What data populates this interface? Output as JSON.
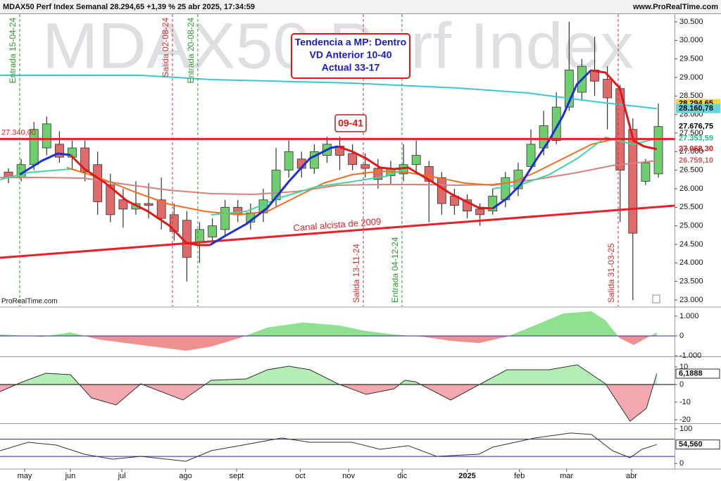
{
  "chart_data": [
    {
      "type": "candlestick",
      "title": "MDAX50 Perf Index Semanal 28.294,65 +1,39 % 25 abr 2025, 17:34:59",
      "source": "www.ProRealTime.com",
      "credit": "ProRealTime.com",
      "watermark": "MDAX50 Perf Index",
      "signal_box": [
        "Tendencia a MP: Dentro",
        "VD Anterior 10-40",
        "Actual 33-17"
      ],
      "signal_label": "09-41",
      "up_color": "#6fcf6f",
      "down_color": "#e06a6a",
      "xlim": [
        -0.663,
        52.27
      ],
      "ylim": [
        22828,
        30709
      ],
      "yticks": [
        {
          "value": 30500,
          "label": "30.500"
        },
        {
          "value": 30000,
          "label": "30.000"
        },
        {
          "value": 29500,
          "label": "29.500"
        },
        {
          "value": 29000,
          "label": "29.000"
        },
        {
          "value": 28500,
          "label": "28.500"
        },
        {
          "value": 28000,
          "label": "28.000"
        },
        {
          "value": 27500,
          "label": "27.500"
        },
        {
          "value": 27000,
          "label": "27.000"
        },
        {
          "value": 26500,
          "label": "26.500"
        },
        {
          "value": 26000,
          "label": "26.000"
        },
        {
          "value": 25500,
          "label": "25.500"
        },
        {
          "value": 25000,
          "label": "25.000"
        },
        {
          "value": 24500,
          "label": "24.500"
        },
        {
          "value": 24000,
          "label": "24.000"
        },
        {
          "value": 23500,
          "label": "23.500"
        },
        {
          "value": 23000,
          "label": "23.000"
        }
      ],
      "open": [
        26450,
        26300,
        26650,
        27100,
        27200,
        26850,
        27100,
        26650,
        26100,
        25700,
        25450,
        25600,
        25700,
        25300,
        25150,
        24550,
        24700,
        24900,
        25500,
        25100,
        25350,
        25700,
        26500,
        26800,
        26550,
        26900,
        27150,
        26950,
        26650,
        26550,
        26350,
        26400,
        26650,
        26600,
        26300,
        25800,
        25700,
        25450,
        25400,
        25700,
        26000,
        26600,
        27100,
        27300,
        28200,
        28600,
        29200,
        28950,
        28700,
        27600,
        26200,
        26400
      ],
      "high": [
        26550,
        26800,
        27800,
        27950,
        27550,
        27300,
        27300,
        27000,
        26400,
        26000,
        26200,
        26150,
        26300,
        25600,
        25400,
        25100,
        25200,
        25700,
        25700,
        25600,
        26000,
        27100,
        27300,
        27000,
        27200,
        27400,
        27400,
        27200,
        26950,
        26800,
        26750,
        27200,
        27300,
        26750,
        26450,
        26000,
        25850,
        25600,
        26000,
        26450,
        26700,
        27600,
        28100,
        28600,
        30500,
        29500,
        30100,
        29300,
        28800,
        27900,
        26800,
        28300
      ],
      "low": [
        26150,
        26200,
        26500,
        26900,
        26700,
        26500,
        26200,
        25300,
        25100,
        24950,
        25300,
        25200,
        24900,
        24600,
        23500,
        24000,
        24500,
        24700,
        25100,
        24900,
        25100,
        25500,
        26300,
        26300,
        26400,
        26700,
        26500,
        26500,
        26300,
        26000,
        26100,
        26200,
        26400,
        25100,
        25300,
        25300,
        25200,
        25000,
        25300,
        25500,
        25800,
        26500,
        26900,
        27200,
        28100,
        28400,
        28500,
        27600,
        25100,
        23000,
        26100,
        26300
      ],
      "close": [
        26300,
        26650,
        27600,
        27750,
        26850,
        27100,
        26450,
        25650,
        25300,
        25450,
        25600,
        25550,
        25200,
        24850,
        24150,
        24900,
        25000,
        25500,
        25300,
        25350,
        25700,
        26500,
        27000,
        26550,
        27000,
        27200,
        26900,
        26650,
        26550,
        26250,
        26550,
        26650,
        26900,
        26200,
        25600,
        25550,
        25400,
        25300,
        25800,
        26300,
        26500,
        27200,
        27700,
        28200,
        29200,
        29300,
        28900,
        28450,
        26500,
        24800,
        26700,
        27676.75
      ],
      "lines": [
        {
          "color": "#3cc8d0",
          "width": 2,
          "x": [
            -0.66,
            10.39,
            15.91,
            26.96,
            35.25,
            40.77,
            46.3,
            50.88
          ],
          "values": [
            29057,
            29057,
            28943,
            28848,
            28715,
            28582,
            28335,
            28160.78
          ]
        },
        {
          "color": "#d98080",
          "width": 2,
          "x": [
            -0.66,
            2.65,
            5.97,
            9.28,
            12.6,
            15.91,
            19.23,
            22.54,
            25.86,
            29.17,
            32.49,
            35.25,
            38.01,
            41.33,
            44.64,
            47.4,
            50.88
          ],
          "values": [
            26303,
            26303,
            26284,
            26113,
            25962,
            25866,
            25848,
            25924,
            26094,
            26113,
            26113,
            26094,
            26113,
            26246,
            26436,
            26626,
            26759.1
          ]
        },
        {
          "color": "#f07020",
          "width": 2,
          "x": [
            4.59,
            7.07,
            9.83,
            12.6,
            15.36,
            18.12,
            20.33,
            22.54,
            24.75,
            26.96,
            29.17,
            31.38,
            33.59,
            35.8,
            38.01,
            39.67,
            41.33,
            43.54,
            45.75,
            47.4,
            49.06
          ],
          "values": [
            26569,
            26303,
            25924,
            25582,
            25392,
            25297,
            25392,
            25772,
            26151,
            26379,
            26474,
            26436,
            26303,
            26151,
            26094,
            26189,
            26436,
            26816,
            27196,
            27329,
            27196
          ]
        },
        {
          "color": "#3fd6a0",
          "width": 2,
          "x": [
            -0.66,
            1.55,
            4.86
          ],
          "values": [
            26246,
            26436,
            26531
          ]
        },
        {
          "color": "#3fd6a0",
          "width": 2,
          "x": [
            15.91,
            18.67,
            21.44,
            24.2,
            26.96,
            29.72,
            31.1
          ],
          "values": [
            25297,
            25392,
            25772,
            26056,
            26189,
            26341,
            26531
          ]
        },
        {
          "color": "#3fd6a0",
          "width": 2,
          "x": [
            38.01,
            40.22,
            42.43,
            44.64,
            46.85,
            49.06,
            50.88
          ],
          "values": [
            26000,
            26113,
            26379,
            26816,
            27386,
            27196,
            27353.59
          ]
        },
        {
          "color": "#1f2fd0",
          "width": 3,
          "x": [
            0.88,
            2.65,
            3.87,
            4.86
          ],
          "values": [
            26379,
            26759,
            26949,
            26911
          ]
        },
        {
          "color": "#1f2fd0",
          "width": 3,
          "x": [
            15.8,
            17.0,
            18.67,
            20.33,
            21.99,
            23.65,
            25.3,
            25.86
          ],
          "values": [
            24480,
            24727,
            25050,
            25487,
            26189,
            26816,
            27101,
            27139
          ]
        },
        {
          "color": "#1f2fd0",
          "width": 3,
          "x": [
            38.0,
            39.1,
            40.2,
            41.3,
            42.4,
            43.5,
            44.6,
            45.7
          ],
          "values": [
            25468,
            25734,
            26113,
            26721,
            27291,
            27955,
            28810,
            29190
          ]
        },
        {
          "color": "#e01818",
          "width": 3,
          "x": [
            4.86,
            5.97,
            7.62,
            9.28,
            10.94,
            12.6,
            13.98,
            14.92,
            15.8
          ],
          "values": [
            26911,
            26531,
            26151,
            25677,
            25392,
            25012,
            24537,
            24480,
            24480
          ]
        },
        {
          "color": "#e01818",
          "width": 3,
          "x": [
            25.86,
            26.96,
            28.07,
            29.17,
            30.28,
            31.38,
            32.49,
            33.59,
            34.7,
            35.8,
            36.91,
            38.0
          ],
          "values": [
            27139,
            27006,
            26816,
            26569,
            26531,
            26569,
            26341,
            26113,
            25867,
            25677,
            25487,
            25468
          ]
        },
        {
          "color": "#e01818",
          "width": 3,
          "x": [
            45.7,
            46.85,
            47.96,
            49.06,
            49.89,
            50.88
          ],
          "values": [
            29190,
            29133,
            28715,
            27291,
            27139,
            27068.3
          ]
        }
      ],
      "level": {
        "value": 27340,
        "label": "27.340,00",
        "color": "#e8202a"
      },
      "trendline": {
        "x": [
          -0.663,
          52.27
        ],
        "values": [
          24138,
          25544
        ],
        "color": "#e8202a",
        "label": "Canal alcista de 2009"
      },
      "events": [
        {
          "x": 0.88,
          "label": "Entrada 15-04-24",
          "color": "#2a9a2a",
          "position": "top"
        },
        {
          "x": 12.87,
          "label": "Salida 02-08-24",
          "color": "#d83030",
          "position": "top"
        },
        {
          "x": 14.86,
          "label": "Entrada 20-08-24",
          "color": "#2a9a2a",
          "position": "top"
        },
        {
          "x": 27.85,
          "label": "Salida 13-11-24",
          "color": "#d83030",
          "position": "bottom"
        },
        {
          "x": 30.88,
          "label": "Entrada 04-12-24",
          "color": "#2a9a2a",
          "position": "bottom"
        },
        {
          "x": 47.85,
          "label": "Salida 31-03-25",
          "color": "#d83030",
          "position": "bottom"
        }
      ],
      "price_tags": [
        {
          "value": 28294.65,
          "label": "28.294,65",
          "bg": "#f5d442",
          "text_color": "#000000"
        },
        {
          "value": 28160.78,
          "label": "28.160,78",
          "bg": "#5fd8e0",
          "text_color": "#000000"
        },
        {
          "value": 27676.75,
          "label": "27.676,75",
          "bg": null,
          "text_color": "#000000"
        },
        {
          "value": 27353.59,
          "label": "27.353,59",
          "bg": null,
          "text_color": "#2bb886"
        },
        {
          "value": 27068.3,
          "label": "27.068,30",
          "bg": null,
          "text_color": "#e01818"
        },
        {
          "value": 26759.1,
          "label": "26.759,10",
          "bg": null,
          "text_color": "#c86060"
        }
      ]
    },
    {
      "type": "area",
      "xlim": [
        -0.663,
        52.27
      ],
      "ylim": [
        -1000,
        1429
      ],
      "yticks": [
        {
          "value": 1000,
          "label": "1.000"
        },
        0,
        {
          "value": -1000,
          "label": "-1.000"
        }
      ],
      "zero_color": "#2a2a9a",
      "up_color": "#8fe08f",
      "down_color": "#f08f8f",
      "line_color": null,
      "x": [
        -0.66,
        2.65,
        4.86,
        7.07,
        10.39,
        13.98,
        15.91,
        18.12,
        20.33,
        23.09,
        25.86,
        28.07,
        30.28,
        32.49,
        34.7,
        36.91,
        39.12,
        41.33,
        43.54,
        45.75,
        46.85,
        47.96,
        49.06,
        50.88
      ],
      "values": [
        70,
        -40,
        180,
        -180,
        -460,
        -750,
        -540,
        -110,
        430,
        680,
        540,
        250,
        70,
        -40,
        -250,
        -360,
        -40,
        540,
        1140,
        1250,
        790,
        -110,
        -460,
        180
      ]
    },
    {
      "type": "area",
      "xlim": [
        -0.663,
        52.27
      ],
      "ylim": [
        -21.6,
        15.2
      ],
      "yticks": [
        10,
        0,
        -10,
        -20
      ],
      "zero_color": "#000000",
      "up_color": "#b5eeb5",
      "down_color": "#f4a8b0",
      "line_color": "#333333",
      "x": [
        -0.66,
        0.99,
        2.93,
        4.86,
        6.52,
        8.45,
        10.39,
        13.7,
        15.91,
        18.67,
        20.33,
        21.99,
        23.65,
        25.86,
        28.07,
        30.28,
        31.1,
        31.93,
        34.7,
        39.12,
        42.43,
        44.64,
        46.85,
        48.78,
        50.06,
        50.88
      ],
      "values": [
        -4,
        1.2,
        6.4,
        5.6,
        -7.6,
        -11.6,
        0.4,
        -8.8,
        2.4,
        3.2,
        8.4,
        10.4,
        8.4,
        0.4,
        -5.6,
        -2.4,
        2.4,
        1.6,
        -8.8,
        8.4,
        8.4,
        11.2,
        0.4,
        -20.8,
        -13.6,
        6.1888
      ],
      "last_tag": {
        "value": 6.1888,
        "label": "6,1888"
      }
    },
    {
      "type": "line",
      "xlim": [
        -0.663,
        52.27
      ],
      "ylim": [
        -14.3,
        112
      ],
      "yticks": [
        100,
        0
      ],
      "levels": [
        70,
        20
      ],
      "level_color": "#2a2a9a",
      "line_color": "#333333",
      "x": [
        -0.66,
        1.55,
        3.76,
        5.97,
        8.18,
        10.39,
        13.92,
        15.91,
        18.12,
        21.44,
        23.65,
        26.96,
        29.17,
        31.38,
        33.59,
        36.91,
        38.01,
        41.33,
        44.09,
        45.75,
        47.4,
        48.78,
        49.72,
        50.88
      ],
      "values": [
        36.7,
        61,
        53,
        26.5,
        12.2,
        20.4,
        6.1,
        36.7,
        51,
        73.5,
        61,
        61,
        40.8,
        51,
        20.4,
        26.5,
        47,
        73.5,
        87.8,
        83.7,
        36.7,
        16.3,
        40.8,
        54.56
      ],
      "last_tag": {
        "value": 54.56,
        "label": "54,560"
      },
      "xticks": [
        {
          "value": 1.27,
          "label": "may"
        },
        {
          "value": 4.86,
          "label": "jun"
        },
        {
          "value": 8.9,
          "label": "jul"
        },
        {
          "value": 13.9,
          "label": "ago"
        },
        {
          "value": 17.9,
          "label": "sept"
        },
        {
          "value": 22.9,
          "label": "oct"
        },
        {
          "value": 26.7,
          "label": "nov"
        },
        {
          "value": 30.9,
          "label": "dic"
        },
        {
          "value": 36.0,
          "label": "2025",
          "bold": true
        },
        {
          "value": 40.1,
          "label": "feb"
        },
        {
          "value": 43.8,
          "label": "mar"
        },
        {
          "value": 48.9,
          "label": "abr"
        }
      ]
    }
  ]
}
